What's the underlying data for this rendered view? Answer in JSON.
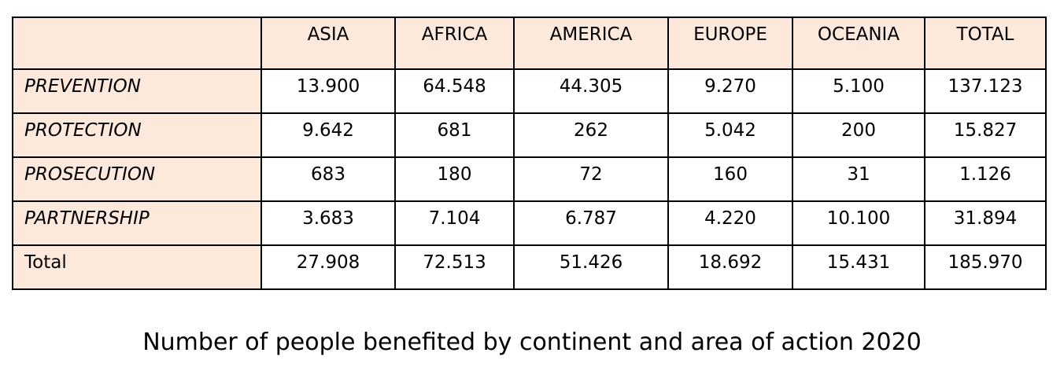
{
  "table": {
    "corner": "",
    "columns": [
      "ASIA",
      "AFRICA",
      "AMERICA",
      "EUROPE",
      "OCEANIA",
      "TOTAL"
    ],
    "rows": [
      {
        "label": "PREVENTION",
        "values": [
          "13.900",
          "64.548",
          "44.305",
          "9.270",
          "5.100",
          "137.123"
        ]
      },
      {
        "label": "PROTECTION",
        "values": [
          "9.642",
          "681",
          "262",
          "5.042",
          "200",
          "15.827"
        ]
      },
      {
        "label": "PROSECUTION",
        "values": [
          "683",
          "180",
          "72",
          "160",
          "31",
          "1.126"
        ]
      },
      {
        "label": "PARTNERSHIP",
        "values": [
          "3.683",
          "7.104",
          "6.787",
          "4.220",
          "10.100",
          "31.894"
        ]
      },
      {
        "label": "Total",
        "values": [
          "27.908",
          "72.513",
          "51.426",
          "18.692",
          "15.431",
          "185.970"
        ]
      }
    ]
  },
  "caption": "Number of people benefited by continent and area of action 2020",
  "colors": {
    "header_fill": "#fde9dc",
    "border": "#000000"
  }
}
